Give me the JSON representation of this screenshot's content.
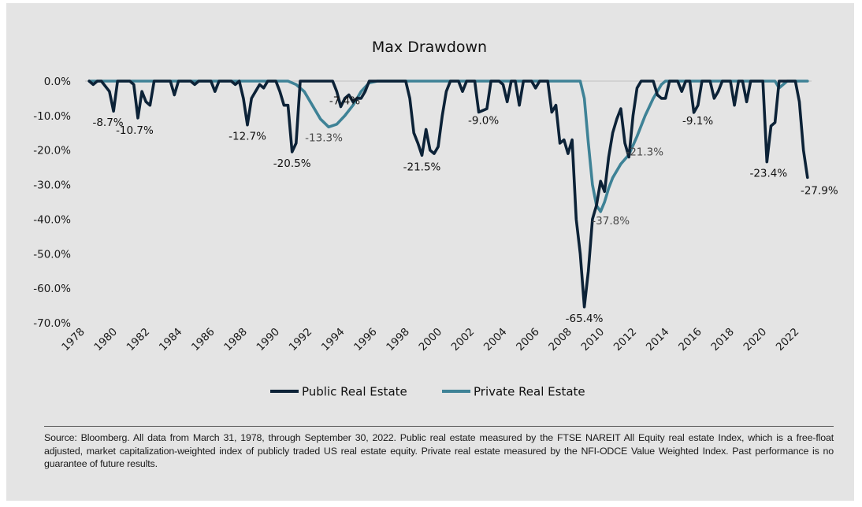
{
  "colors": {
    "public": "#0c2237",
    "private": "#3e8296",
    "background": "#e4e4e4",
    "zero_line": "#c7c7c7",
    "annotation_public": "#111111",
    "annotation_private": "#4a4a4a"
  },
  "chart_data": {
    "type": "line",
    "title": "Max Drawdown",
    "xlabel": "",
    "ylabel": "",
    "xlim": [
      1978,
      2022.75
    ],
    "ylim": [
      -70,
      0
    ],
    "grid": false,
    "legend_position": "bottom",
    "x_ticks": [
      "1978",
      "1980",
      "1982",
      "1984",
      "1986",
      "1988",
      "1990",
      "1992",
      "1994",
      "1996",
      "1998",
      "2000",
      "2002",
      "2004",
      "2006",
      "2008",
      "2010",
      "2012",
      "2014",
      "2016",
      "2018",
      "2020",
      "2022"
    ],
    "y_ticks": [
      "0.0%",
      "-10.0%",
      "-20.0%",
      "-30.0%",
      "-40.0%",
      "-50.0%",
      "-60.0%",
      "-70.0%"
    ],
    "series": [
      {
        "name": "Public Real Estate",
        "points": [
          [
            1978.25,
            0
          ],
          [
            1978.5,
            -1
          ],
          [
            1978.75,
            0
          ],
          [
            1979,
            0
          ],
          [
            1979.5,
            -3
          ],
          [
            1979.75,
            -8.7
          ],
          [
            1980,
            0
          ],
          [
            1980.75,
            0
          ],
          [
            1981,
            -1
          ],
          [
            1981.25,
            -10.7
          ],
          [
            1981.5,
            -3
          ],
          [
            1981.75,
            -6
          ],
          [
            1982,
            -7
          ],
          [
            1982.25,
            0
          ],
          [
            1983.25,
            0
          ],
          [
            1983.5,
            -4
          ],
          [
            1983.75,
            0
          ],
          [
            1984.5,
            0
          ],
          [
            1984.75,
            -1
          ],
          [
            1985,
            0
          ],
          [
            1985.75,
            0
          ],
          [
            1986,
            -3
          ],
          [
            1986.25,
            0
          ],
          [
            1987,
            0
          ],
          [
            1987.25,
            -1
          ],
          [
            1987.5,
            0
          ],
          [
            1987.75,
            -5
          ],
          [
            1988,
            -12.7
          ],
          [
            1988.25,
            -5
          ],
          [
            1988.5,
            -3
          ],
          [
            1988.75,
            -1
          ],
          [
            1989,
            -2
          ],
          [
            1989.25,
            0
          ],
          [
            1989.75,
            0
          ],
          [
            1990,
            -3
          ],
          [
            1990.25,
            -7
          ],
          [
            1990.5,
            -7
          ],
          [
            1990.75,
            -20.5
          ],
          [
            1991,
            -18
          ],
          [
            1991.25,
            0
          ],
          [
            1993.25,
            0
          ],
          [
            1993.5,
            -3
          ],
          [
            1993.75,
            -7.4
          ],
          [
            1994,
            -5
          ],
          [
            1994.25,
            -4
          ],
          [
            1994.5,
            -6
          ],
          [
            1994.75,
            -5
          ],
          [
            1995,
            -5
          ],
          [
            1995.25,
            -3
          ],
          [
            1995.5,
            0
          ],
          [
            1997.75,
            0
          ],
          [
            1998,
            -5
          ],
          [
            1998.25,
            -15
          ],
          [
            1998.5,
            -18
          ],
          [
            1998.75,
            -21.5
          ],
          [
            1999,
            -14
          ],
          [
            1999.25,
            -20
          ],
          [
            1999.5,
            -21
          ],
          [
            1999.75,
            -19
          ],
          [
            2000,
            -10
          ],
          [
            2000.25,
            -3
          ],
          [
            2000.5,
            0
          ],
          [
            2001,
            0
          ],
          [
            2001.25,
            -3
          ],
          [
            2001.5,
            0
          ],
          [
            2002,
            0
          ],
          [
            2002.25,
            -9
          ],
          [
            2002.5,
            -8.5
          ],
          [
            2002.75,
            -8
          ],
          [
            2003,
            0
          ],
          [
            2003.5,
            0
          ],
          [
            2003.75,
            -1
          ],
          [
            2004,
            -6
          ],
          [
            2004.25,
            0
          ],
          [
            2004.5,
            0
          ],
          [
            2004.75,
            -7
          ],
          [
            2005,
            0
          ],
          [
            2005.5,
            0
          ],
          [
            2005.75,
            -2
          ],
          [
            2006,
            0
          ],
          [
            2006.5,
            0
          ],
          [
            2006.75,
            -9
          ],
          [
            2007,
            -7
          ],
          [
            2007.25,
            -18
          ],
          [
            2007.5,
            -17
          ],
          [
            2007.75,
            -21
          ],
          [
            2008,
            -17
          ],
          [
            2008.25,
            -40
          ],
          [
            2008.5,
            -50
          ],
          [
            2008.75,
            -65.4
          ],
          [
            2009,
            -55
          ],
          [
            2009.25,
            -40
          ],
          [
            2009.5,
            -36
          ],
          [
            2009.75,
            -29
          ],
          [
            2010,
            -32
          ],
          [
            2010.25,
            -22
          ],
          [
            2010.5,
            -15
          ],
          [
            2010.75,
            -11
          ],
          [
            2011,
            -8
          ],
          [
            2011.25,
            -18
          ],
          [
            2011.5,
            -22
          ],
          [
            2011.75,
            -10
          ],
          [
            2012,
            -2
          ],
          [
            2012.25,
            0
          ],
          [
            2013,
            0
          ],
          [
            2013.25,
            -4
          ],
          [
            2013.5,
            -5
          ],
          [
            2013.75,
            -5
          ],
          [
            2014,
            0
          ],
          [
            2014.5,
            0
          ],
          [
            2014.75,
            -3
          ],
          [
            2015,
            0
          ],
          [
            2015.25,
            0
          ],
          [
            2015.5,
            -9.1
          ],
          [
            2015.75,
            -7
          ],
          [
            2016,
            0
          ],
          [
            2016.5,
            0
          ],
          [
            2016.75,
            -5
          ],
          [
            2017,
            -3
          ],
          [
            2017.25,
            0
          ],
          [
            2017.75,
            0
          ],
          [
            2018,
            -7
          ],
          [
            2018.25,
            0
          ],
          [
            2018.5,
            0
          ],
          [
            2018.75,
            -6
          ],
          [
            2019,
            0
          ],
          [
            2019.75,
            0
          ],
          [
            2020,
            -23.4
          ],
          [
            2020.25,
            -13
          ],
          [
            2020.5,
            -12
          ],
          [
            2020.75,
            0
          ],
          [
            2021.75,
            0
          ],
          [
            2022,
            -6
          ],
          [
            2022.25,
            -20
          ],
          [
            2022.5,
            -27.9
          ]
        ]
      },
      {
        "name": "Private Real Estate",
        "points": [
          [
            1978.25,
            0
          ],
          [
            1990,
            0
          ],
          [
            1990.5,
            0
          ],
          [
            1991,
            -1
          ],
          [
            1991.5,
            -3
          ],
          [
            1992,
            -7
          ],
          [
            1992.5,
            -11
          ],
          [
            1993,
            -13.3
          ],
          [
            1993.5,
            -12.5
          ],
          [
            1994,
            -10
          ],
          [
            1994.5,
            -7
          ],
          [
            1995,
            -3
          ],
          [
            1995.5,
            -0.5
          ],
          [
            1996,
            0
          ],
          [
            2008.5,
            0
          ],
          [
            2008.75,
            -5
          ],
          [
            2009,
            -18
          ],
          [
            2009.25,
            -30
          ],
          [
            2009.5,
            -36
          ],
          [
            2009.75,
            -37.8
          ],
          [
            2010,
            -35
          ],
          [
            2010.25,
            -31
          ],
          [
            2010.5,
            -28
          ],
          [
            2011,
            -24
          ],
          [
            2011.5,
            -21.3
          ],
          [
            2012,
            -16
          ],
          [
            2012.5,
            -10
          ],
          [
            2013,
            -5
          ],
          [
            2013.5,
            -1
          ],
          [
            2013.75,
            0
          ],
          [
            2020.5,
            0
          ],
          [
            2020.75,
            -2
          ],
          [
            2021,
            -1
          ],
          [
            2021.25,
            0
          ],
          [
            2022.5,
            0
          ]
        ]
      }
    ],
    "annotations": [
      {
        "text": "-8.7%",
        "series": "Public Real Estate",
        "x": 1979.75,
        "y": -8.7
      },
      {
        "text": "-10.7%",
        "series": "Public Real Estate",
        "x": 1981.25,
        "y": -10.7
      },
      {
        "text": "-12.7%",
        "series": "Public Real Estate",
        "x": 1988,
        "y": -12.7
      },
      {
        "text": "-20.5%",
        "series": "Public Real Estate",
        "x": 1990.75,
        "y": -20.5
      },
      {
        "text": "-7.4%",
        "series": "Public Real Estate",
        "x": 1993.75,
        "y": -7.4
      },
      {
        "text": "-13.3%",
        "series": "Private Real Estate",
        "x": 1993,
        "y": -13.3
      },
      {
        "text": "-21.5%",
        "series": "Public Real Estate",
        "x": 1998.75,
        "y": -21.5
      },
      {
        "text": "-9.0%",
        "series": "Public Real Estate",
        "x": 2002.25,
        "y": -9.0
      },
      {
        "text": "-65.4%",
        "series": "Public Real Estate",
        "x": 2008.75,
        "y": -65.4
      },
      {
        "text": "-37.8%",
        "series": "Private Real Estate",
        "x": 2009.75,
        "y": -37.8
      },
      {
        "text": "-21.3%",
        "series": "Private Real Estate",
        "x": 2011.5,
        "y": -21.3
      },
      {
        "text": "-9.1%",
        "series": "Public Real Estate",
        "x": 2015.5,
        "y": -9.1
      },
      {
        "text": "-23.4%",
        "series": "Public Real Estate",
        "x": 2020,
        "y": -23.4
      },
      {
        "text": "-27.9%",
        "series": "Public Real Estate",
        "x": 2022.5,
        "y": -27.9
      }
    ]
  },
  "footnote": "Source: Bloomberg. All data from March 31, 1978, through September 30, 2022. Public real estate measured by the FTSE NAREIT All Equity real estate Index, which is a free-float adjusted, market capitalization-weighted index of publicly traded US real estate equity. Private real estate measured by the NFI-ODCE Value Weighted Index. Past performance is no guarantee of future results."
}
